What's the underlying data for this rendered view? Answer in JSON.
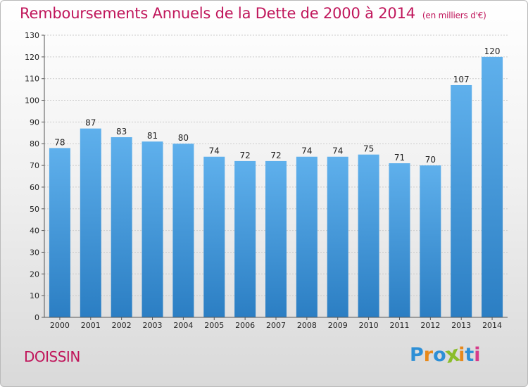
{
  "chart_data": {
    "type": "bar",
    "title": "Remboursements Annuels de la Dette de 2000 à 2014",
    "subtitle": "(en milliers d'€)",
    "xlabel": "",
    "ylabel": "",
    "categories": [
      "2000",
      "2001",
      "2002",
      "2003",
      "2004",
      "2005",
      "2006",
      "2007",
      "2008",
      "2009",
      "2010",
      "2011",
      "2012",
      "2013",
      "2014"
    ],
    "values": [
      78,
      87,
      83,
      81,
      80,
      74,
      72,
      72,
      74,
      74,
      75,
      71,
      70,
      107,
      120
    ],
    "ylim": [
      0,
      130
    ],
    "yticks": [
      0,
      10,
      20,
      30,
      40,
      50,
      60,
      70,
      80,
      90,
      100,
      110,
      120,
      130
    ],
    "grid": true,
    "legend": "none"
  },
  "footer": {
    "commune": "DOISSIN",
    "logo_text": "Proxiti"
  },
  "colors": {
    "title": "#c0165b",
    "bar_top": "#5fb0ec",
    "bar_bottom": "#2b7ec3",
    "grid": "#cccccc",
    "logo": [
      "#2d8fd6",
      "#e8891a",
      "#2d8fd6",
      "#8bbd2a",
      "#e8891a",
      "#2d8fd6",
      "#d63a8a"
    ]
  }
}
